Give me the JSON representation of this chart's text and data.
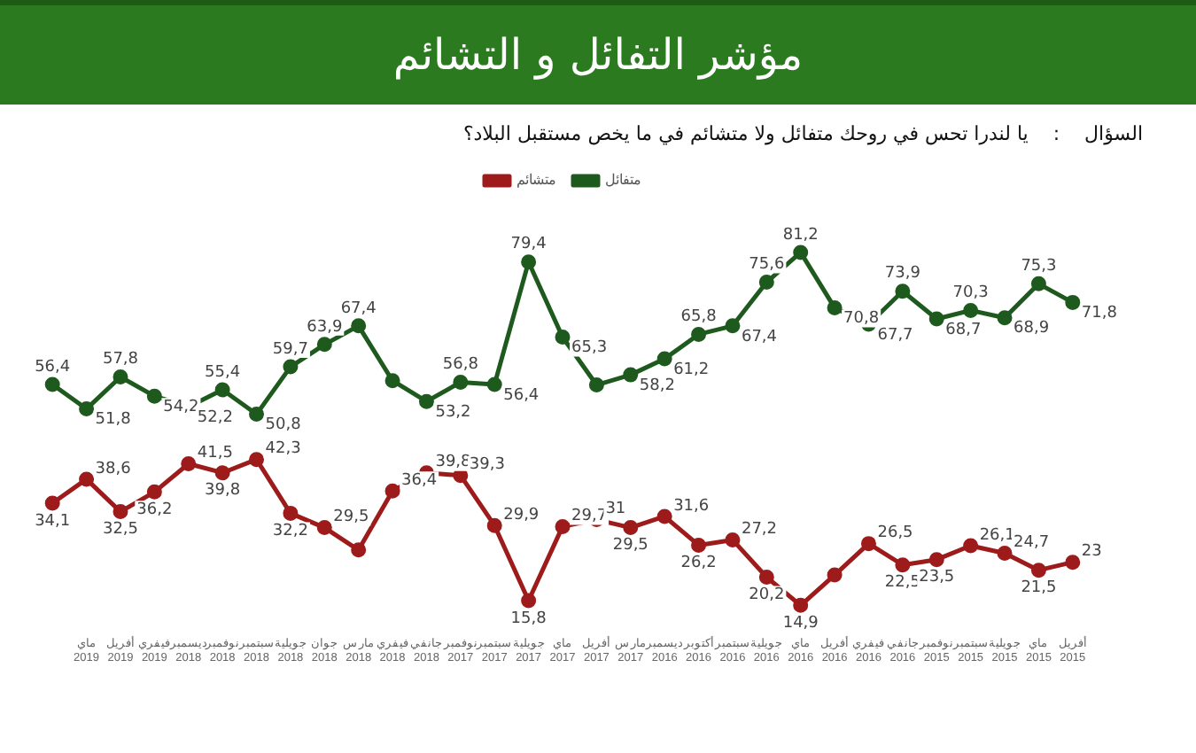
{
  "chart_data": {
    "type": "line",
    "title": "مؤشر التفائل و التشائم",
    "subtitle": "السؤال    :    يا لندرا تحس في روحك متفائل ولا متشائم في ما يخص مستقبل البلاد؟",
    "categories": [
      null,
      "ماي 2019",
      "أفريل 2019",
      "فيفري 2019",
      "ديسمبر 2018",
      "نوفمبر 2018",
      "سبتمبر 2018",
      "جويلية 2018",
      "جوان 2018",
      "مارس 2018",
      "فيفري 2018",
      "جانفي 2018",
      "نوفمبر 2017",
      "سبتمبر 2017",
      "جويلية 2017",
      "ماي 2017",
      "أفريل 2017",
      "مارس 2017",
      "ديسمبر 2016",
      "أكتوبر 2016",
      "سبتمبر 2016",
      "جويلية 2016",
      "ماي 2016",
      "أفريل 2016",
      "فيفري 2016",
      "جانفي 2016",
      "نوفمبر 2015",
      "سبتمبر 2015",
      "جويلية 2015",
      "ماي 2015",
      "أفريل 2015"
    ],
    "series": [
      {
        "name": "متفائل",
        "color": "#1e5a1e",
        "values": [
          56.4,
          51.8,
          57.8,
          54.2,
          52.2,
          55.4,
          50.8,
          59.7,
          63.9,
          67.4,
          57.1,
          53.2,
          56.8,
          56.4,
          79.4,
          65.3,
          56.3,
          58.2,
          61.2,
          65.8,
          67.4,
          75.6,
          81.2,
          70.8,
          67.7,
          73.9,
          68.7,
          70.3,
          68.9,
          75.3,
          71.8
        ],
        "value_labels": [
          "56,4",
          "51,8",
          "57,8",
          "54,2",
          "52,2",
          "55,4",
          "50,8",
          "59,7",
          "63,9",
          "67,4",
          null,
          "53,2",
          "56,8",
          "56,4",
          "79,4",
          "65,3",
          null,
          "58,2",
          "61,2",
          "65,8",
          "67,4",
          "75,6",
          "81,2",
          "70,8",
          "67,7",
          "73,9",
          "68,7",
          "70,3",
          "68,9",
          "75,3",
          "71,8"
        ]
      },
      {
        "name": "متشائم",
        "color": "#9e1b1b",
        "values": [
          34.1,
          38.6,
          32.5,
          36.2,
          41.5,
          39.8,
          42.3,
          32.2,
          29.5,
          25.3,
          36.4,
          39.8,
          39.3,
          29.9,
          15.8,
          29.7,
          31,
          29.5,
          31.6,
          26.2,
          27.2,
          20.2,
          14.9,
          20.6,
          26.5,
          22.5,
          23.5,
          26.1,
          24.7,
          21.5,
          23
        ],
        "value_labels": [
          "34,1",
          "38,6",
          "32,5",
          "36,2",
          "41,5",
          "39,8",
          "42,3",
          "32,2",
          "29,5",
          null,
          "36,4",
          "39,8",
          "39,3",
          "29,9",
          "15,8",
          "29,7",
          "31",
          "29,5",
          "31,6",
          "26,2",
          "27,2",
          "20,2",
          "14,9",
          null,
          "26,5",
          "22,5",
          "23,5",
          "26,1",
          "24,7",
          "21,5",
          "23"
        ]
      }
    ],
    "tick_labels": "x",
    "grid": false,
    "legend": "top",
    "marker": "circle",
    "line_style": "solid"
  }
}
